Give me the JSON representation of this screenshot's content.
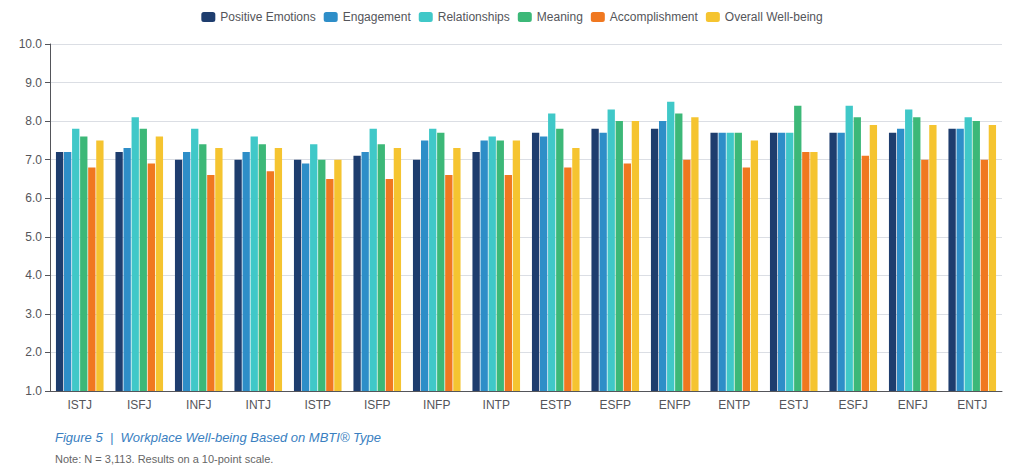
{
  "chart_data": {
    "type": "bar",
    "title": "Figure 5  |  Workplace Well-being Based on MBTI® Type",
    "annotations": [
      "Note: N = 3,113. Results on a 10-point scale."
    ],
    "categories": [
      "ISTJ",
      "ISFJ",
      "INFJ",
      "INTJ",
      "ISTP",
      "ISFP",
      "INFP",
      "INTP",
      "ESTP",
      "ESFP",
      "ENFP",
      "ENTP",
      "ESTJ",
      "ESFJ",
      "ENFJ",
      "ENTJ"
    ],
    "series": [
      {
        "name": "Positive Emotions",
        "color": "#1e3d6e",
        "values": [
          7.2,
          7.2,
          7.0,
          7.0,
          7.0,
          7.1,
          7.0,
          7.2,
          7.7,
          7.8,
          7.8,
          7.7,
          7.7,
          7.7,
          7.7,
          7.8
        ]
      },
      {
        "name": "Engagement",
        "color": "#2e8ec8",
        "values": [
          7.2,
          7.3,
          7.2,
          7.2,
          6.9,
          7.2,
          7.5,
          7.5,
          7.6,
          7.7,
          8.0,
          7.7,
          7.7,
          7.7,
          7.8,
          7.8
        ]
      },
      {
        "name": "Relationships",
        "color": "#40c8c8",
        "values": [
          7.8,
          8.1,
          7.8,
          7.6,
          7.4,
          7.8,
          7.8,
          7.6,
          8.2,
          8.3,
          8.5,
          7.7,
          7.7,
          8.4,
          8.3,
          8.1
        ]
      },
      {
        "name": "Meaning",
        "color": "#3cb878",
        "values": [
          7.6,
          7.8,
          7.4,
          7.4,
          7.0,
          7.4,
          7.7,
          7.5,
          7.8,
          8.0,
          8.2,
          7.7,
          8.4,
          8.1,
          8.1,
          8.0
        ]
      },
      {
        "name": "Accomplishment",
        "color": "#f07820",
        "values": [
          6.8,
          6.9,
          6.6,
          6.7,
          6.5,
          6.5,
          6.6,
          6.6,
          6.8,
          6.9,
          7.0,
          6.8,
          7.2,
          7.1,
          7.0,
          7.0
        ]
      },
      {
        "name": "Overall Well-being",
        "color": "#f5c430",
        "values": [
          7.5,
          7.6,
          7.3,
          7.3,
          7.0,
          7.3,
          7.3,
          7.5,
          7.3,
          8.0,
          8.1,
          7.5,
          7.2,
          7.9,
          7.9,
          7.9
        ]
      }
    ],
    "ylim": [
      1.0,
      10.0
    ],
    "yticks": [
      {
        "value": 1,
        "label": "1.0"
      },
      {
        "value": 2,
        "label": "2.0"
      },
      {
        "value": 3,
        "label": "3.0"
      },
      {
        "value": 4,
        "label": "4.0"
      },
      {
        "value": 5,
        "label": "5.0"
      },
      {
        "value": 6,
        "label": "6.0"
      },
      {
        "value": 7,
        "label": "7.0"
      },
      {
        "value": 8,
        "label": "8.0"
      },
      {
        "value": 9,
        "label": "9.0"
      },
      {
        "value": 10,
        "label": "10.0"
      }
    ],
    "grid": true,
    "legend": "top"
  }
}
